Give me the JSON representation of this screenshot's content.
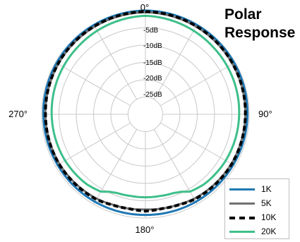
{
  "chart_data": {
    "type": "polar",
    "title_line1": "Polar",
    "title_line2": "Response",
    "angle_labels": [
      "0°",
      "90°",
      "180°",
      "270°"
    ],
    "radial_labels": [
      "-5dB",
      "-10dB",
      "-15dB",
      "-20dB",
      "-25dB"
    ],
    "r_max_db": 0,
    "r_min_db": -30,
    "grid": true,
    "legend_position": "bottom-right",
    "series": [
      {
        "name": "1K",
        "color": "#1f78b4",
        "style": "solid",
        "points": [
          [
            0,
            0
          ],
          [
            90,
            -0.5
          ],
          [
            120,
            -0.7
          ],
          [
            150,
            -0.8
          ],
          [
            180,
            -0.9
          ],
          [
            210,
            -0.8
          ],
          [
            240,
            -0.7
          ],
          [
            270,
            -0.5
          ],
          [
            360,
            0
          ]
        ]
      },
      {
        "name": "5K",
        "color": "#707070",
        "style": "solid",
        "points": [
          [
            0,
            -0.5
          ],
          [
            90,
            -1.1
          ],
          [
            120,
            -1.3
          ],
          [
            150,
            -1.8
          ],
          [
            160,
            -2.2
          ],
          [
            170,
            -2.3
          ],
          [
            180,
            -2.5
          ],
          [
            190,
            -2.3
          ],
          [
            200,
            -2.2
          ],
          [
            210,
            -1.8
          ],
          [
            240,
            -1.3
          ],
          [
            270,
            -1.1
          ],
          [
            360,
            -0.5
          ]
        ]
      },
      {
        "name": "10K",
        "color": "#000000",
        "style": "dashed",
        "points": [
          [
            0,
            -0.3
          ],
          [
            90,
            -1.1
          ],
          [
            120,
            -1.2
          ],
          [
            150,
            -1.6
          ],
          [
            160,
            -2.1
          ],
          [
            170,
            -2.3
          ],
          [
            180,
            -2.0
          ],
          [
            190,
            -2.3
          ],
          [
            200,
            -2.1
          ],
          [
            210,
            -1.6
          ],
          [
            240,
            -1.2
          ],
          [
            270,
            -1.1
          ],
          [
            360,
            -0.3
          ]
        ]
      },
      {
        "name": "20K",
        "color": "#3dbf8a",
        "style": "solid",
        "points": [
          [
            0,
            -1.5
          ],
          [
            45,
            -2.4
          ],
          [
            90,
            -2.9
          ],
          [
            120,
            -3.2
          ],
          [
            140,
            -3.6
          ],
          [
            150,
            -4.2
          ],
          [
            155,
            -5.3
          ],
          [
            160,
            -5.8
          ],
          [
            170,
            -6.0
          ],
          [
            180,
            -6.0
          ],
          [
            190,
            -6.0
          ],
          [
            200,
            -5.8
          ],
          [
            205,
            -5.3
          ],
          [
            210,
            -4.2
          ],
          [
            220,
            -3.6
          ],
          [
            240,
            -3.2
          ],
          [
            270,
            -2.9
          ],
          [
            315,
            -2.4
          ],
          [
            360,
            -1.5
          ]
        ]
      }
    ]
  },
  "legend": {
    "items": [
      {
        "label": "1K",
        "color": "#1f78b4",
        "style": "solid"
      },
      {
        "label": "5K",
        "color": "#707070",
        "style": "solid"
      },
      {
        "label": "10K",
        "color": "#000000",
        "style": "dashed"
      },
      {
        "label": "20K",
        "color": "#3dbf8a",
        "style": "solid"
      }
    ]
  },
  "colors": {
    "grid": "#c8c8c8",
    "background": "#ffffff"
  }
}
